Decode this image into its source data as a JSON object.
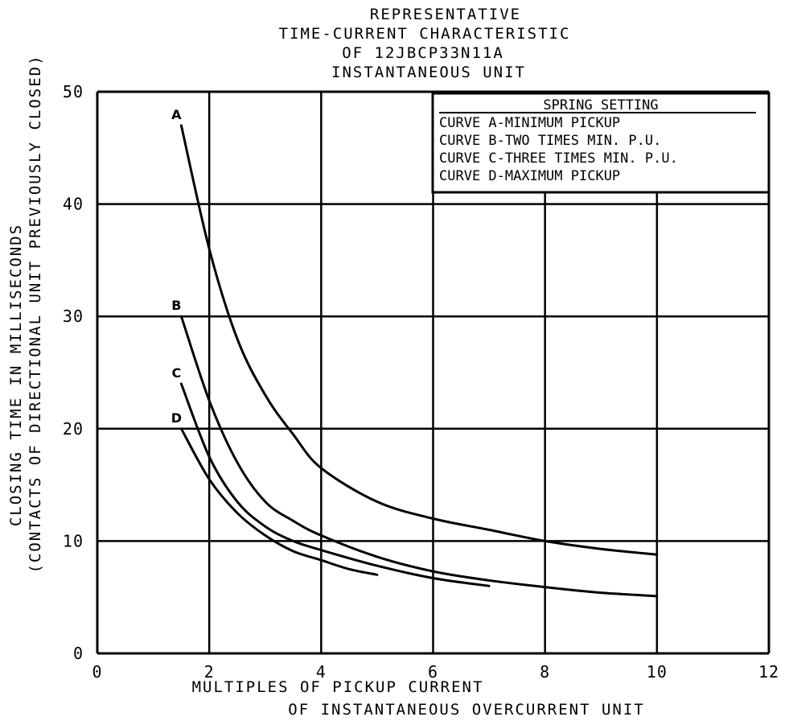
{
  "chart_data": {
    "type": "line",
    "title": [
      "REPRESENTATIVE",
      "TIME-CURRENT CHARACTERISTIC",
      "OF 12JBCP33N11A",
      "INSTANTANEOUS UNIT"
    ],
    "xlabel": [
      "MULTIPLES OF PICKUP CURRENT",
      "OF INSTANTANEOUS OVERCURRENT UNIT"
    ],
    "ylabel": [
      "CLOSING TIME IN MILLISECONDS",
      "(CONTACTS OF DIRECTIONAL UNIT PREVIOUSLY CLOSED)"
    ],
    "xlim": [
      0,
      12
    ],
    "ylim": [
      0,
      50
    ],
    "xticks": [
      0,
      2,
      4,
      6,
      8,
      10,
      12
    ],
    "yticks": [
      0,
      10,
      20,
      30,
      40,
      50
    ],
    "xtick_labels": [
      "0",
      "2",
      "4",
      "6",
      "8",
      "10",
      "12"
    ],
    "ytick_labels": [
      "0",
      "10",
      "20",
      "30",
      "40",
      "50"
    ],
    "grid": true,
    "legend": {
      "placement": "top-right",
      "title": "SPRING SETTING",
      "entries": [
        "CURVE A-MINIMUM PICKUP",
        "CURVE B-TWO TIMES MIN. P.U.",
        "CURVE C-THREE TIMES MIN. P.U.",
        "CURVE D-MAXIMUM PICKUP"
      ]
    },
    "series": [
      {
        "name": "A",
        "x": [
          1.5,
          2.0,
          2.5,
          3.0,
          3.5,
          4.0,
          5.0,
          6.0,
          7.0,
          8.0,
          9.0,
          10.0
        ],
        "y": [
          47,
          36,
          28,
          23,
          19.5,
          16.5,
          13.5,
          12,
          11,
          10,
          9.3,
          8.8
        ]
      },
      {
        "name": "B",
        "x": [
          1.5,
          2.0,
          2.5,
          3.0,
          3.5,
          4.0,
          5.0,
          6.0,
          7.0,
          8.0,
          9.0,
          10.0
        ],
        "y": [
          30,
          22.5,
          17,
          13.5,
          11.8,
          10.5,
          8.6,
          7.3,
          6.5,
          5.9,
          5.4,
          5.1
        ]
      },
      {
        "name": "C",
        "x": [
          1.5,
          2.0,
          2.5,
          3.0,
          3.5,
          4.0,
          5.0,
          6.0,
          7.0
        ],
        "y": [
          24,
          17.5,
          13.5,
          11.3,
          10.0,
          9.2,
          7.8,
          6.7,
          6.0
        ]
      },
      {
        "name": "D",
        "x": [
          1.5,
          2.0,
          2.5,
          3.0,
          3.5,
          4.0,
          4.5,
          5.0
        ],
        "y": [
          20,
          15.5,
          12.5,
          10.5,
          9.1,
          8.3,
          7.5,
          7.0
        ]
      }
    ]
  }
}
